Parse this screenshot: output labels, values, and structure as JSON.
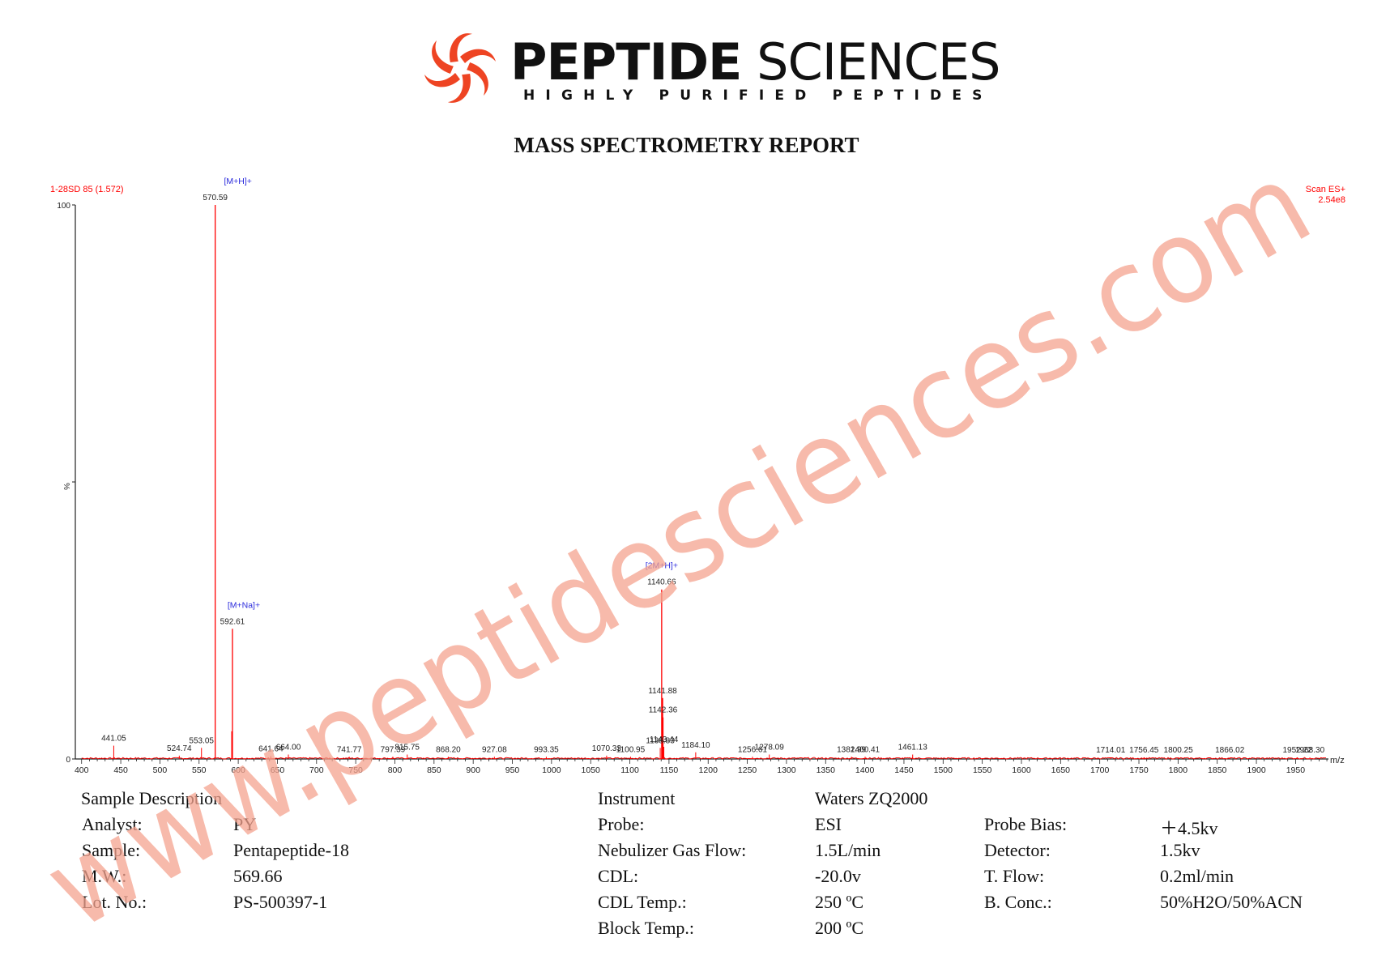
{
  "brand": {
    "name_bold": "PEPTIDE",
    "name_light": "SCIENCES",
    "tagline": "HIGHLY PURIFIED PEPTIDES",
    "logo_color": "#ee4423"
  },
  "report_title": "MASS SPECTROMETRY REPORT",
  "chart_data": {
    "type": "bar",
    "scan_id": "1-28SD 85 (1.572)",
    "scan_mode": "Scan ES+",
    "base_intensity": "2.54e8",
    "xlabel": "m/z",
    "ylabel": "%",
    "xlim": [
      392,
      1992
    ],
    "ylim": [
      0,
      100
    ],
    "x_ticks": [
      400,
      450,
      500,
      550,
      600,
      650,
      700,
      750,
      800,
      850,
      900,
      950,
      1000,
      1050,
      1100,
      1150,
      1200,
      1250,
      1300,
      1350,
      1400,
      1450,
      1500,
      1550,
      1600,
      1650,
      1700,
      1750,
      1800,
      1850,
      1900,
      1950
    ],
    "y_tick_labels": [
      "100",
      "0"
    ],
    "line_color": "#ff0000",
    "annotation_color": "#2a2adc",
    "peaks": [
      {
        "x": 441.05,
        "y": 2.4,
        "label": "441.05"
      },
      {
        "x": 524.74,
        "y": 0.6,
        "label": "524.74"
      },
      {
        "x": 553.05,
        "y": 2.0,
        "label": "553.05"
      },
      {
        "x": 570.59,
        "y": 100,
        "label": "570.59"
      },
      {
        "x": 591.6,
        "y": 5.0,
        "label": ""
      },
      {
        "x": 592.61,
        "y": 23.5,
        "label": "592.61"
      },
      {
        "x": 641.64,
        "y": 0.5,
        "label": "641.64"
      },
      {
        "x": 664.0,
        "y": 0.8,
        "label": "664.00"
      },
      {
        "x": 741.77,
        "y": 0.4,
        "label": "741.77"
      },
      {
        "x": 797.39,
        "y": 0.4,
        "label": "797.39"
      },
      {
        "x": 815.75,
        "y": 0.8,
        "label": "815.75"
      },
      {
        "x": 868.2,
        "y": 0.4,
        "label": "868.20"
      },
      {
        "x": 927.08,
        "y": 0.4,
        "label": "927.08"
      },
      {
        "x": 993.35,
        "y": 0.4,
        "label": "993.35"
      },
      {
        "x": 1070.33,
        "y": 0.6,
        "label": "1070.33"
      },
      {
        "x": 1100.95,
        "y": 0.4,
        "label": "1100.95"
      },
      {
        "x": 1138.83,
        "y": 2.0,
        "label": "1138.83"
      },
      {
        "x": 1140.66,
        "y": 30.6,
        "label": "1140.66"
      },
      {
        "x": 1141.88,
        "y": 11.0,
        "label": "1141.88"
      },
      {
        "x": 1142.36,
        "y": 7.5,
        "label": "1142.36"
      },
      {
        "x": 1143.44,
        "y": 2.2,
        "label": "1143.44"
      },
      {
        "x": 1184.1,
        "y": 1.2,
        "label": "1184.10"
      },
      {
        "x": 1256.61,
        "y": 0.4,
        "label": "1256.61"
      },
      {
        "x": 1278.09,
        "y": 0.8,
        "label": "1278.09"
      },
      {
        "x": 1382.99,
        "y": 0.4,
        "label": "1382.99"
      },
      {
        "x": 1400.41,
        "y": 0.4,
        "label": "1400.41"
      },
      {
        "x": 1461.13,
        "y": 0.8,
        "label": "1461.13"
      },
      {
        "x": 1714.01,
        "y": 0.3,
        "label": "1714.01"
      },
      {
        "x": 1756.45,
        "y": 0.3,
        "label": "1756.45"
      },
      {
        "x": 1800.25,
        "y": 0.3,
        "label": "1800.25"
      },
      {
        "x": 1866.02,
        "y": 0.3,
        "label": "1866.02"
      },
      {
        "x": 1952.22,
        "y": 0.3,
        "label": "1952.22"
      },
      {
        "x": 1968.3,
        "y": 0.3,
        "label": "1968.30"
      }
    ],
    "annotations": [
      {
        "x": 570.59,
        "text": "[M+H]+"
      },
      {
        "x": 592.61,
        "text": "[M+Na]+"
      },
      {
        "x": 1140.66,
        "text": "[2M+H]+"
      }
    ]
  },
  "sample": {
    "heading": "Sample Description",
    "rows": [
      {
        "label": "Analyst:",
        "value": "PY"
      },
      {
        "label": "Sample:",
        "value": "Pentapeptide-18"
      },
      {
        "label": "M.W.:",
        "value": "569.66"
      },
      {
        "label": "Lot. No.:",
        "value": "PS-500397-1"
      }
    ]
  },
  "instrument": {
    "heading": "Instrument",
    "name": "Waters ZQ2000",
    "rows": [
      {
        "label": "Probe:",
        "value": "ESI"
      },
      {
        "label": "Nebulizer Gas Flow:",
        "value": "1.5L/min"
      },
      {
        "label": "CDL:",
        "value": "-20.0v"
      },
      {
        "label": "CDL Temp.:",
        "value": "250 ºC"
      },
      {
        "label": "Block Temp.:",
        "value": "200 ºC"
      }
    ],
    "rows_right": [
      {
        "label": "Probe Bias:",
        "value": "＋4.5kv"
      },
      {
        "label": "Detector:",
        "value": "1.5kv"
      },
      {
        "label": "T. Flow:",
        "value": "0.2ml/min"
      },
      {
        "label": "B. Conc.:",
        "value": "50%H2O/50%ACN"
      }
    ]
  },
  "watermark": {
    "text": "www.peptidesciences.com",
    "color": "#f4a38f"
  }
}
